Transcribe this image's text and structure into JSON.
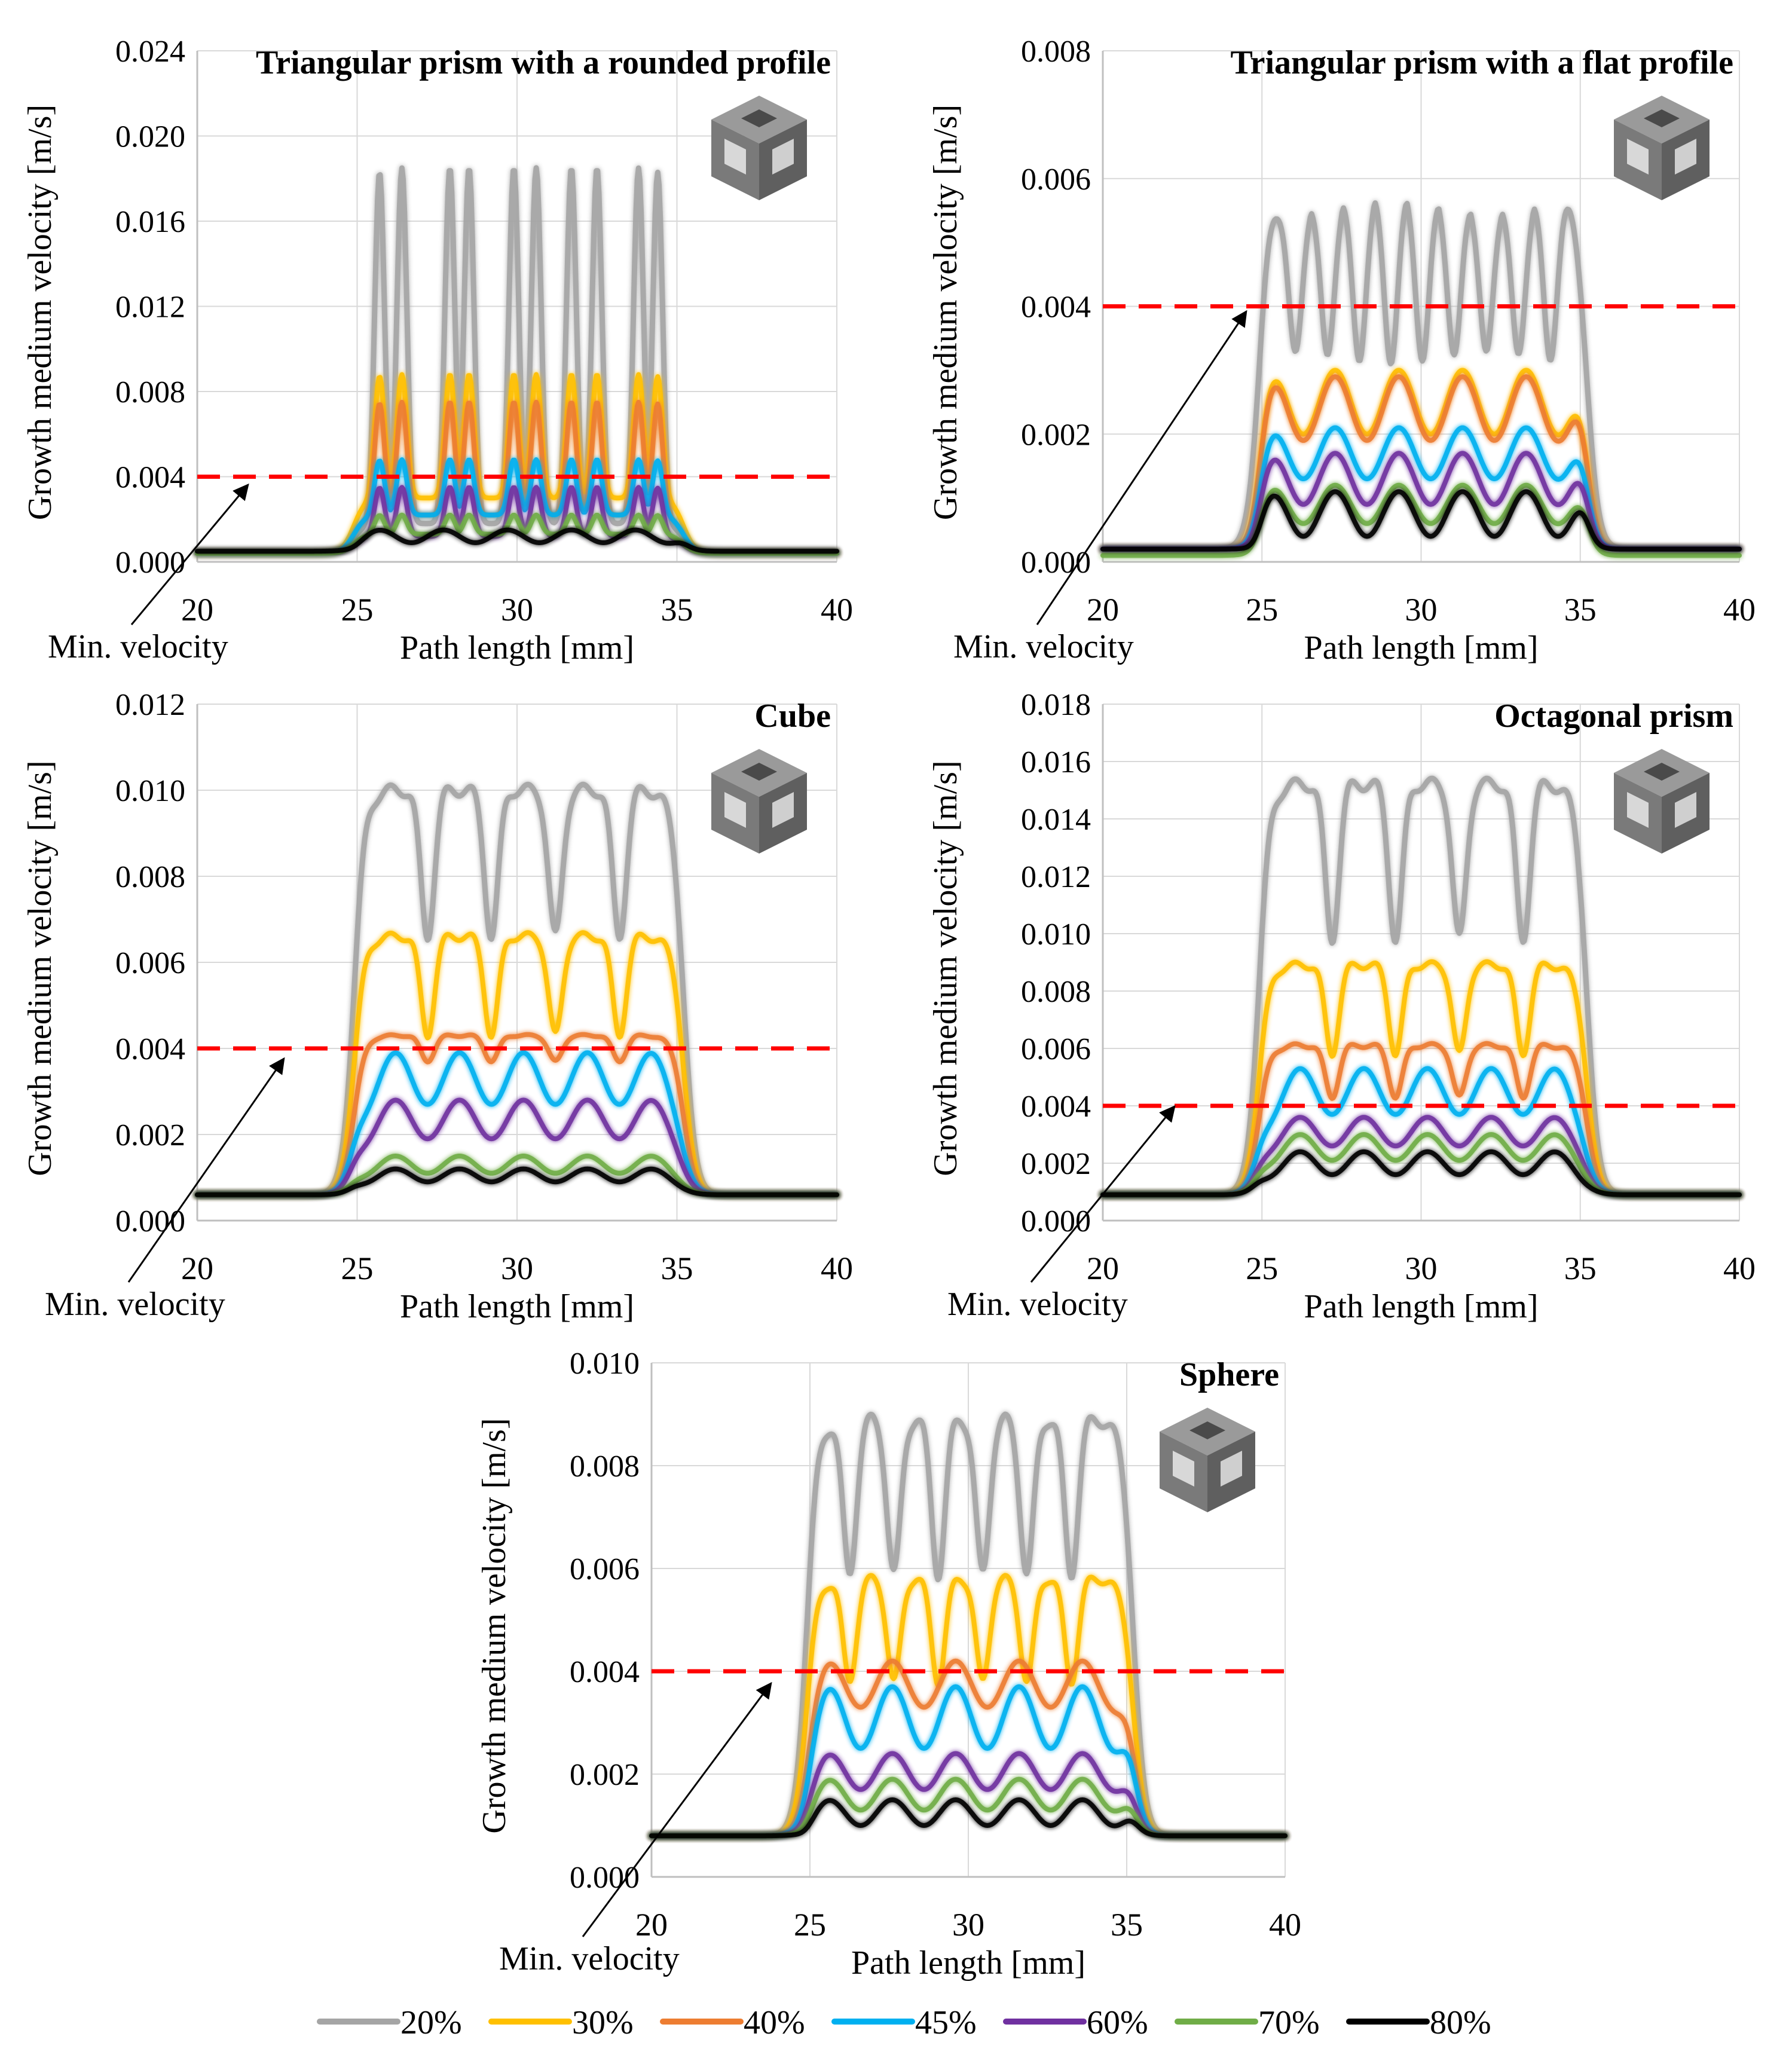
{
  "shared": {
    "xlabel": "Path length [mm]",
    "ylabel": "Growth medium velocity [m/s]",
    "x_ticks": [
      "20",
      "25",
      "30",
      "35",
      "40"
    ],
    "xlim": [
      20,
      40
    ],
    "annotation": "Min. velocity",
    "threshold": 0.004
  },
  "legend": [
    {
      "label": "20%",
      "color": "#a5a5a5"
    },
    {
      "label": "30%",
      "color": "#ffc000"
    },
    {
      "label": "40%",
      "color": "#ed7d31"
    },
    {
      "label": "45%",
      "color": "#00b0f0"
    },
    {
      "label": "60%",
      "color": "#7030a0"
    },
    {
      "label": "70%",
      "color": "#70ad47"
    },
    {
      "label": "80%",
      "color": "#000000"
    }
  ],
  "colors": {
    "threshold": "#ff0000",
    "grid": "#d9d9d9",
    "axis": "#bfbfbf",
    "arrow": "#000000"
  },
  "chart_data": [
    {
      "type": "line",
      "title": "Triangular prism with a rounded profile",
      "xlabel": "Path length [mm]",
      "ylabel": "Growth medium velocity [m/s]",
      "xlim": [
        20,
        40
      ],
      "ylim": [
        0,
        0.024
      ],
      "y_ticks": [
        "0.000",
        "0.004",
        "0.008",
        "0.012",
        "0.016",
        "0.020",
        "0.024"
      ],
      "threshold": 0.004,
      "plateau": [
        24.9,
        35.2
      ],
      "peaks": [
        25.7,
        26.4,
        27.9,
        28.5,
        29.9,
        30.6,
        31.7,
        32.5,
        33.8,
        34.4
      ],
      "series": [
        {
          "name": "20%",
          "base": 0.0005,
          "low": 0.0018,
          "high": 0.0185,
          "style": "spiky"
        },
        {
          "name": "30%",
          "base": 0.0004,
          "low": 0.003,
          "high": 0.0088,
          "style": "spiky"
        },
        {
          "name": "40%",
          "base": 0.0004,
          "low": 0.0022,
          "high": 0.0075,
          "style": "spiky"
        },
        {
          "name": "45%",
          "base": 0.0004,
          "low": 0.0022,
          "high": 0.0048,
          "style": "spiky"
        },
        {
          "name": "60%",
          "base": 0.0004,
          "low": 0.0012,
          "high": 0.0035,
          "style": "spiky"
        },
        {
          "name": "70%",
          "base": 0.0004,
          "low": 0.0013,
          "high": 0.0022,
          "style": "spiky"
        },
        {
          "name": "80%",
          "base": 0.0005,
          "low": 0.0009,
          "high": 0.0015,
          "style": "wave"
        }
      ]
    },
    {
      "type": "line",
      "title": "Triangular prism with a flat profile",
      "xlabel": "Path length [mm]",
      "ylabel": "Growth medium velocity [m/s]",
      "xlim": [
        20,
        40
      ],
      "ylim": [
        0,
        0.008
      ],
      "y_ticks": [
        "0.000",
        "0.002",
        "0.004",
        "0.006",
        "0.008"
      ],
      "threshold": 0.004,
      "plateau": [
        24.9,
        35.2
      ],
      "peaks": [
        25.3,
        26.8,
        27.3,
        28.8,
        29.3,
        30.8,
        31.3,
        32.8,
        33.3,
        34.8
      ],
      "series": [
        {
          "name": "20%",
          "base": 0.0002,
          "low": 0.0032,
          "high": 0.0057,
          "style": "dips"
        },
        {
          "name": "30%",
          "base": 0.0002,
          "low": 0.002,
          "high": 0.003,
          "style": "wave"
        },
        {
          "name": "40%",
          "base": 0.0002,
          "low": 0.0019,
          "high": 0.0029,
          "style": "wave"
        },
        {
          "name": "45%",
          "base": 0.0002,
          "low": 0.0013,
          "high": 0.0021,
          "style": "wave"
        },
        {
          "name": "60%",
          "base": 0.0002,
          "low": 0.0009,
          "high": 0.0017,
          "style": "wave"
        },
        {
          "name": "70%",
          "base": 0.0001,
          "low": 0.0006,
          "high": 0.0012,
          "style": "wave"
        },
        {
          "name": "80%",
          "base": 0.0002,
          "low": 0.0004,
          "high": 0.0011,
          "style": "wave"
        }
      ]
    },
    {
      "type": "line",
      "title": "Cube",
      "xlabel": "Path length [mm]",
      "ylabel": "Growth medium velocity [m/s]",
      "xlim": [
        20,
        40
      ],
      "ylim": [
        0,
        0.012
      ],
      "y_ticks": [
        "0.000",
        "0.002",
        "0.004",
        "0.006",
        "0.008",
        "0.010",
        "0.012"
      ],
      "threshold": 0.004,
      "plateau": [
        24.9,
        35.2
      ],
      "peaks": [
        26.2,
        28.2,
        30.2,
        32.2,
        34.2
      ],
      "series": [
        {
          "name": "20%",
          "base": 0.0006,
          "low": 0.0066,
          "high": 0.01,
          "style": "dips"
        },
        {
          "name": "30%",
          "base": 0.0006,
          "low": 0.0043,
          "high": 0.0066,
          "style": "dips"
        },
        {
          "name": "40%",
          "base": 0.0006,
          "low": 0.0037,
          "high": 0.0043,
          "style": "dips"
        },
        {
          "name": "45%",
          "base": 0.0006,
          "low": 0.0027,
          "high": 0.0039,
          "style": "wave"
        },
        {
          "name": "60%",
          "base": 0.0006,
          "low": 0.0019,
          "high": 0.0028,
          "style": "wave"
        },
        {
          "name": "70%",
          "base": 0.0006,
          "low": 0.0011,
          "high": 0.0015,
          "style": "wave"
        },
        {
          "name": "80%",
          "base": 0.0006,
          "low": 0.0009,
          "high": 0.0012,
          "style": "wave"
        }
      ]
    },
    {
      "type": "line",
      "title": "Octagonal prism",
      "xlabel": "Path length [mm]",
      "ylabel": "Growth medium velocity [m/s]",
      "xlim": [
        20,
        40
      ],
      "ylim": [
        0,
        0.018
      ],
      "y_ticks": [
        "0.000",
        "0.002",
        "0.004",
        "0.006",
        "0.008",
        "0.010",
        "0.012",
        "0.014",
        "0.016",
        "0.018"
      ],
      "threshold": 0.004,
      "plateau": [
        24.9,
        35.2
      ],
      "peaks": [
        26.2,
        28.2,
        30.2,
        32.2,
        34.2
      ],
      "series": [
        {
          "name": "20%",
          "base": 0.0009,
          "low": 0.0098,
          "high": 0.0152,
          "style": "dips"
        },
        {
          "name": "30%",
          "base": 0.0009,
          "low": 0.0058,
          "high": 0.0089,
          "style": "dips"
        },
        {
          "name": "40%",
          "base": 0.0009,
          "low": 0.0043,
          "high": 0.0061,
          "style": "dips"
        },
        {
          "name": "45%",
          "base": 0.0009,
          "low": 0.0037,
          "high": 0.0053,
          "style": "wave"
        },
        {
          "name": "60%",
          "base": 0.0009,
          "low": 0.0026,
          "high": 0.0036,
          "style": "wave"
        },
        {
          "name": "70%",
          "base": 0.0009,
          "low": 0.0021,
          "high": 0.003,
          "style": "wave"
        },
        {
          "name": "80%",
          "base": 0.0009,
          "low": 0.0016,
          "high": 0.0024,
          "style": "wave"
        }
      ]
    },
    {
      "type": "line",
      "title": "Sphere",
      "xlabel": "Path length [mm]",
      "ylabel": "Growth medium velocity [m/s]",
      "xlim": [
        20,
        40
      ],
      "ylim": [
        0,
        0.01
      ],
      "y_ticks": [
        "0.000",
        "0.002",
        "0.004",
        "0.006",
        "0.008",
        "0.010"
      ],
      "threshold": 0.004,
      "plateau": [
        24.9,
        35.2
      ],
      "peaks": [
        25.6,
        26.9,
        28.4,
        29.7,
        31.2,
        32.5,
        34.0
      ],
      "series": [
        {
          "name": "20%",
          "base": 0.0008,
          "low": 0.0059,
          "high": 0.0089,
          "style": "dips"
        },
        {
          "name": "30%",
          "base": 0.0008,
          "low": 0.0038,
          "high": 0.0058,
          "style": "dips"
        },
        {
          "name": "40%",
          "base": 0.0008,
          "low": 0.0033,
          "high": 0.0042,
          "style": "wave"
        },
        {
          "name": "45%",
          "base": 0.0008,
          "low": 0.0025,
          "high": 0.0037,
          "style": "wave"
        },
        {
          "name": "60%",
          "base": 0.0008,
          "low": 0.0017,
          "high": 0.0024,
          "style": "wave"
        },
        {
          "name": "70%",
          "base": 0.0008,
          "low": 0.0013,
          "high": 0.0019,
          "style": "wave"
        },
        {
          "name": "80%",
          "base": 0.0008,
          "low": 0.001,
          "high": 0.0015,
          "style": "wave"
        }
      ]
    }
  ]
}
